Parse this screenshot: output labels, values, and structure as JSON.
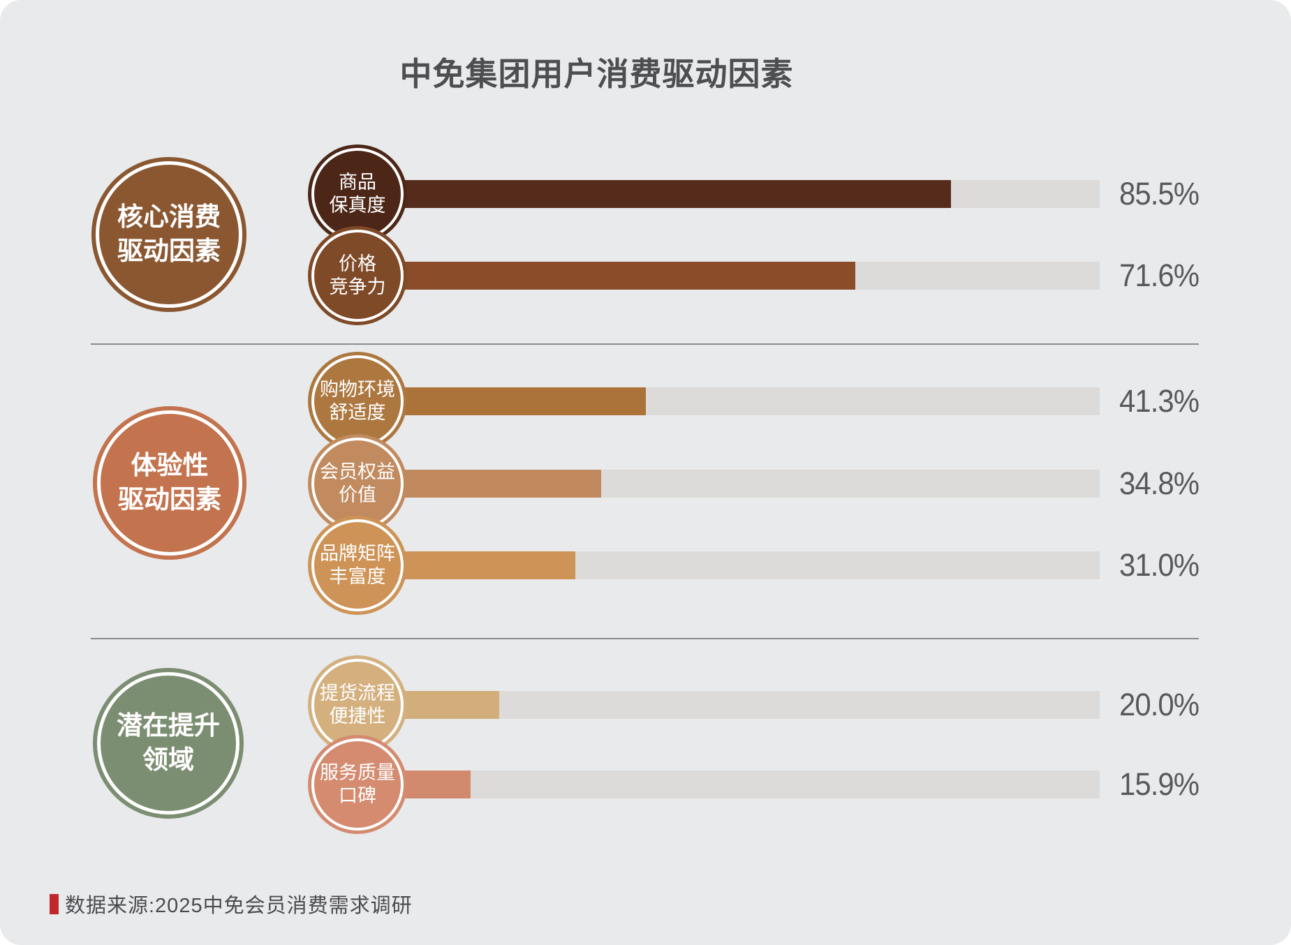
{
  "source": {
    "label": "数据来源:2025中免会员消费需求调研",
    "marker_color": "#C1272D"
  },
  "chart_data": {
    "type": "bar",
    "title": "中免集团用户消费驱动因素",
    "unit": "%",
    "orientation": "horizontal",
    "axis_max": 107,
    "grid": "off",
    "legend_position": "none",
    "track_color": "#DCDBD9",
    "value_label_color": "#58595B",
    "divider_color": "#8B8B8B",
    "groups": [
      {
        "id": "core",
        "label": "核心消费驱动因素",
        "label_lines": [
          "核心消费",
          "驱动因素"
        ],
        "color": "#8A5731",
        "items": [
          {
            "id": "authenticity",
            "label": "商品保真度",
            "label_lines": [
              "商品",
              "保真度"
            ],
            "value": 85.5,
            "value_label": "85.5%",
            "circle_color": "#4C2718",
            "bar_color": "#552C1B"
          },
          {
            "id": "price",
            "label": "价格竞争力",
            "label_lines": [
              "价格",
              "竞争力"
            ],
            "value": 71.6,
            "value_label": "71.6%",
            "circle_color": "#7F4A28",
            "bar_color": "#8A4C29"
          }
        ]
      },
      {
        "id": "experience",
        "label": "体验性驱动因素",
        "label_lines": [
          "体验性",
          "驱动因素"
        ],
        "color": "#C3734E",
        "items": [
          {
            "id": "environment",
            "label": "购物环境舒适度",
            "label_lines": [
              "购物环境",
              "舒适度"
            ],
            "value": 41.3,
            "value_label": "41.3%",
            "circle_color": "#AD7840",
            "bar_color": "#AB7339"
          },
          {
            "id": "membership",
            "label": "会员权益价值",
            "label_lines": [
              "会员权益",
              "价值"
            ],
            "value": 34.8,
            "value_label": "34.8%",
            "circle_color": "#C18B5F",
            "bar_color": "#C18A5E"
          },
          {
            "id": "brand",
            "label": "品牌矩阵丰富度",
            "label_lines": [
              "品牌矩阵",
              "丰富度"
            ],
            "value": 31.0,
            "value_label": "31.0%",
            "circle_color": "#CE9356",
            "bar_color": "#CE9356"
          }
        ]
      },
      {
        "id": "potential",
        "label": "潜在提升领域",
        "label_lines": [
          "潜在提升",
          "领域"
        ],
        "color": "#7C8E72",
        "items": [
          {
            "id": "pickup",
            "label": "提货流程便捷性",
            "label_lines": [
              "提货流程",
              "便捷性"
            ],
            "value": 20.0,
            "value_label": "20.0%",
            "circle_color": "#D4B07F",
            "bar_color": "#D2AE7B"
          },
          {
            "id": "service",
            "label": "服务质量口碑",
            "label_lines": [
              "服务质量",
              "口碑"
            ],
            "value": 15.9,
            "value_label": "15.9%",
            "circle_color": "#D48B70",
            "bar_color": "#D28A6E"
          }
        ]
      }
    ]
  }
}
